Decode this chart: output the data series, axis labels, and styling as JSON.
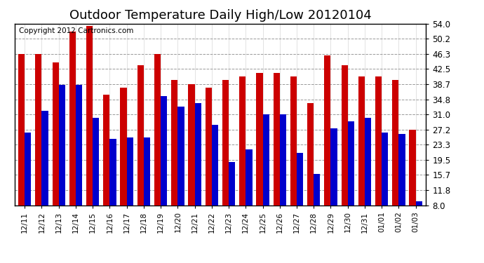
{
  "title": "Outdoor Temperature Daily High/Low 20120104",
  "copyright": "Copyright 2012 Cartronics.com",
  "dates": [
    "12/11",
    "12/12",
    "12/13",
    "12/14",
    "12/15",
    "12/16",
    "12/17",
    "12/18",
    "12/19",
    "12/20",
    "12/21",
    "12/22",
    "12/23",
    "12/24",
    "12/25",
    "12/26",
    "12/27",
    "12/28",
    "12/29",
    "12/30",
    "12/31",
    "01/01",
    "01/02",
    "01/03"
  ],
  "highs": [
    46.3,
    46.3,
    44.1,
    52.0,
    53.5,
    36.0,
    37.8,
    43.5,
    46.3,
    39.7,
    38.7,
    37.8,
    39.7,
    40.6,
    41.5,
    41.5,
    40.6,
    33.8,
    46.0,
    43.5,
    40.6,
    40.6,
    39.7,
    27.2
  ],
  "lows": [
    26.4,
    32.0,
    38.5,
    38.5,
    30.2,
    24.8,
    25.2,
    25.2,
    35.6,
    32.9,
    33.8,
    28.4,
    19.0,
    22.1,
    31.0,
    31.0,
    21.2,
    16.0,
    27.5,
    29.3,
    30.2,
    26.4,
    26.0,
    9.0
  ],
  "high_color": "#cc0000",
  "low_color": "#0000cc",
  "bg_color": "#ffffff",
  "plot_bg_color": "#ffffff",
  "grid_color": "#999999",
  "ymin": 8.0,
  "ymax": 54.0,
  "yticks": [
    8.0,
    11.8,
    15.7,
    19.5,
    23.3,
    27.2,
    31.0,
    34.8,
    38.7,
    42.5,
    46.3,
    50.2,
    54.0
  ],
  "title_fontsize": 13,
  "copyright_fontsize": 7.5,
  "bar_width": 0.38
}
